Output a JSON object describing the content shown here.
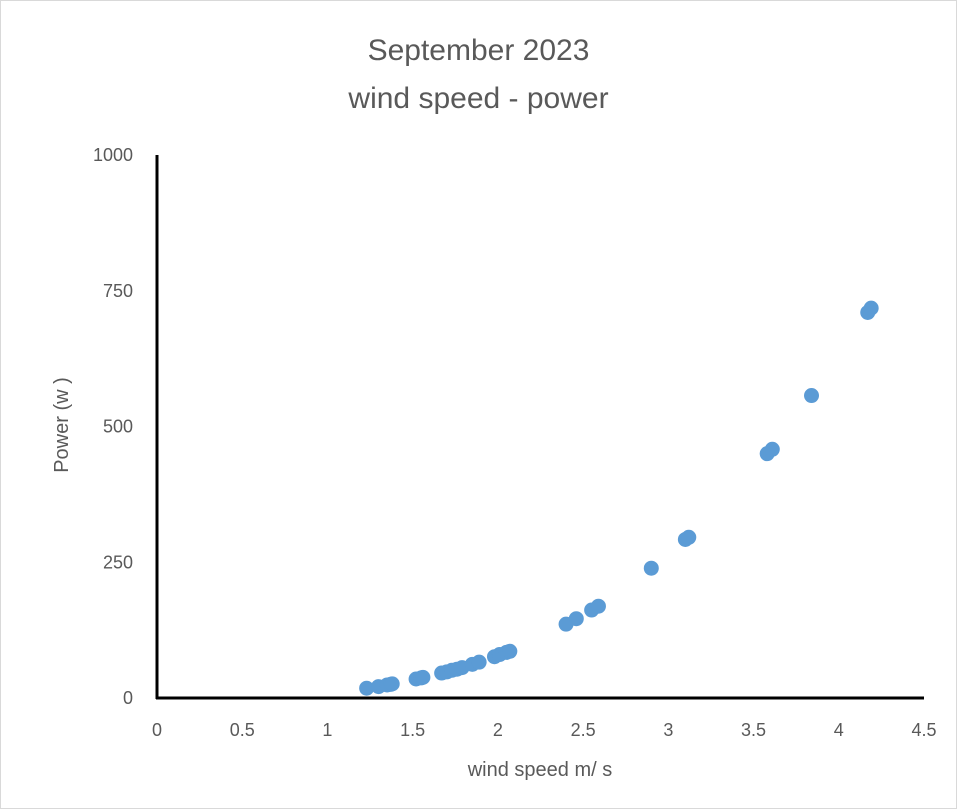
{
  "chart_data": {
    "type": "scatter",
    "title": "September 2023",
    "subtitle": "wind speed - power",
    "xlabel": "wind speed m/ s",
    "ylabel": "Power (w )",
    "xlim": [
      0,
      4.5
    ],
    "ylim": [
      0,
      1000
    ],
    "xticks": [
      "0",
      "0.5",
      "1",
      "1.5",
      "2",
      "2.5",
      "3",
      "3.5",
      "4",
      "4.5"
    ],
    "yticks": [
      "0",
      "250",
      "500",
      "750",
      "1000"
    ],
    "grid": false,
    "legend": "none",
    "marker_color": "#5b9bd5",
    "axis_color": "#000000",
    "series": [
      {
        "points": [
          [
            1.23,
            18
          ],
          [
            1.3,
            21
          ],
          [
            1.35,
            24
          ],
          [
            1.37,
            25
          ],
          [
            1.38,
            26
          ],
          [
            1.52,
            35
          ],
          [
            1.55,
            37
          ],
          [
            1.56,
            38
          ],
          [
            1.67,
            46
          ],
          [
            1.7,
            48
          ],
          [
            1.73,
            51
          ],
          [
            1.76,
            53
          ],
          [
            1.79,
            56
          ],
          [
            1.85,
            62
          ],
          [
            1.89,
            66
          ],
          [
            1.98,
            76
          ],
          [
            2.01,
            80
          ],
          [
            2.05,
            84
          ],
          [
            2.07,
            86
          ],
          [
            2.4,
            136
          ],
          [
            2.46,
            146
          ],
          [
            2.55,
            162
          ],
          [
            2.59,
            169
          ],
          [
            2.9,
            239
          ],
          [
            3.1,
            292
          ],
          [
            3.12,
            296
          ],
          [
            3.58,
            450
          ],
          [
            3.61,
            458
          ],
          [
            3.84,
            557
          ],
          [
            4.17,
            710
          ],
          [
            4.19,
            718
          ]
        ]
      }
    ]
  }
}
